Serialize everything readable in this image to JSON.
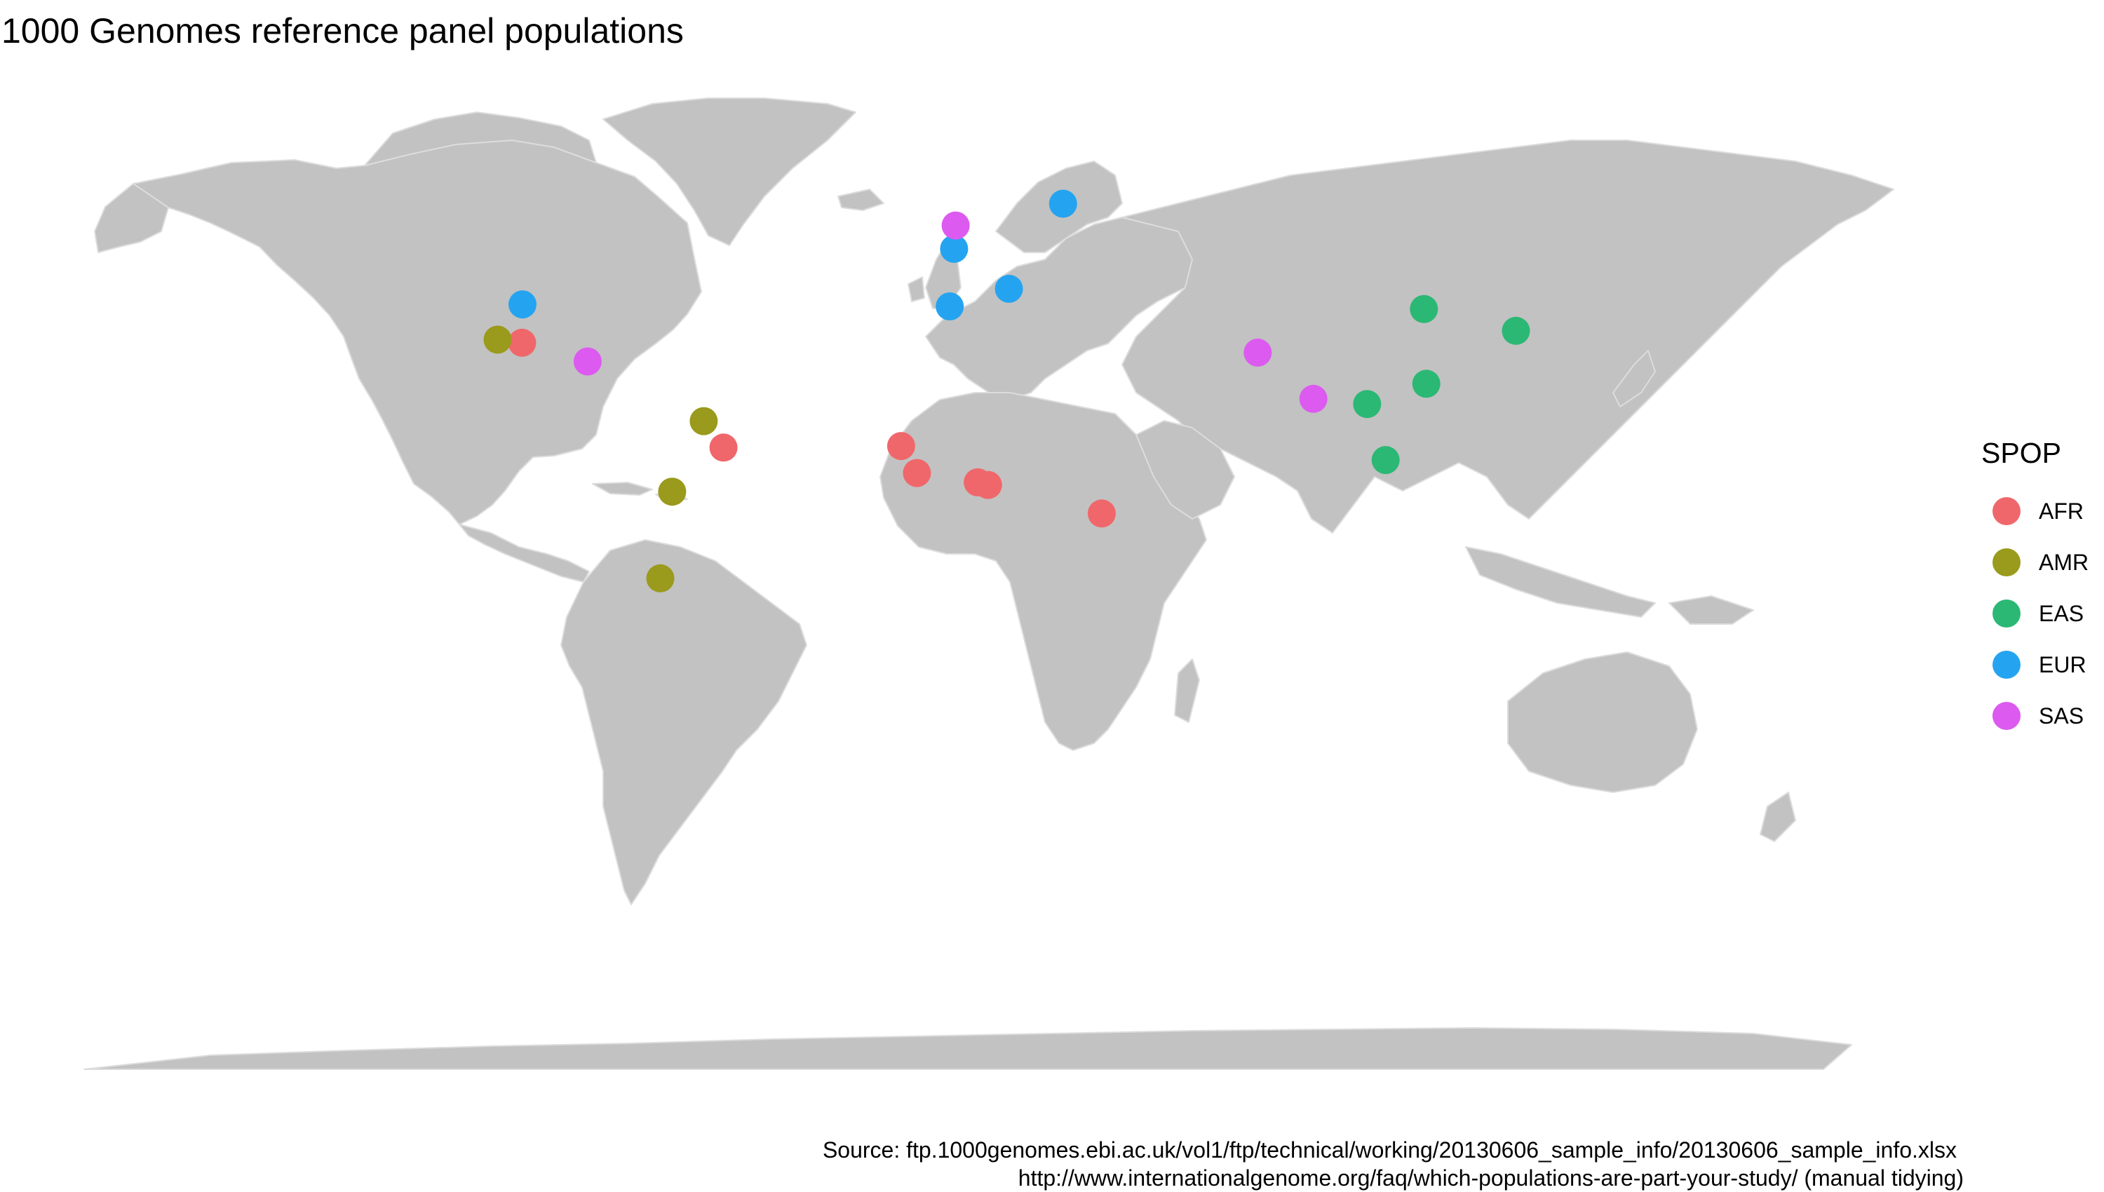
{
  "title": "1000 Genomes reference panel populations",
  "colors": {
    "land": "#c2c2c2",
    "border": "#dcdcdc",
    "AFR": "#f0676b",
    "AMR": "#9a9a1c",
    "EAS": "#2bb874",
    "EUR": "#24a4f0",
    "SAS": "#dc5af0"
  },
  "legend": {
    "title": "SPOP",
    "items": [
      {
        "label": "AFR",
        "color": "#f0676b"
      },
      {
        "label": "AMR",
        "color": "#9a9a1c"
      },
      {
        "label": "EAS",
        "color": "#2bb874"
      },
      {
        "label": "EUR",
        "color": "#24a4f0"
      },
      {
        "label": "SAS",
        "color": "#dc5af0"
      }
    ]
  },
  "caption": {
    "line1": "Source: ftp.1000genomes.ebi.ac.uk/vol1/ftp/technical/working/20130606_sample_info/20130606_sample_info.xlsx",
    "line2": "http://www.internationalgenome.org/faq/which-populations-are-part-your-study/ (manual tidying)"
  },
  "points": [
    {
      "spop": "AFR",
      "lon": -112,
      "lat": 33.4
    },
    {
      "spop": "AFR",
      "lon": -61,
      "lat": 13.2
    },
    {
      "spop": "AFR",
      "lon": -16,
      "lat": 13.5
    },
    {
      "spop": "AFR",
      "lon": -12,
      "lat": 8.3
    },
    {
      "spop": "AFR",
      "lon": 3.4,
      "lat": 6.5
    },
    {
      "spop": "AFR",
      "lon": 6.0,
      "lat": 6.0
    },
    {
      "spop": "AFR",
      "lon": 34.8,
      "lat": 0.5
    },
    {
      "spop": "AMR",
      "lon": -118.2,
      "lat": 34
    },
    {
      "spop": "AMR",
      "lon": -66,
      "lat": 18.3
    },
    {
      "spop": "AMR",
      "lon": -74,
      "lat": 4.7
    },
    {
      "spop": "AMR",
      "lon": -77,
      "lat": -12
    },
    {
      "spop": "EAS",
      "lon": 116.4,
      "lat": 39.9
    },
    {
      "spop": "EAS",
      "lon": 139.7,
      "lat": 35.7
    },
    {
      "spop": "EAS",
      "lon": 117,
      "lat": 25.5
    },
    {
      "spop": "EAS",
      "lon": 102,
      "lat": 21.6
    },
    {
      "spop": "EAS",
      "lon": 106.7,
      "lat": 10.8
    },
    {
      "spop": "EUR",
      "lon": -111.9,
      "lat": 40.8
    },
    {
      "spop": "EUR",
      "lon": -2.6,
      "lat": 51.5
    },
    {
      "spop": "EUR",
      "lon": -3.7,
      "lat": 40.4
    },
    {
      "spop": "EUR",
      "lon": 11.3,
      "lat": 43.8
    },
    {
      "spop": "EUR",
      "lon": 25,
      "lat": 60.2
    },
    {
      "spop": "SAS",
      "lon": -95.4,
      "lat": 29.8
    },
    {
      "spop": "SAS",
      "lon": -2.2,
      "lat": 56
    },
    {
      "spop": "SAS",
      "lon": 74.3,
      "lat": 31.5
    },
    {
      "spop": "SAS",
      "lon": 88.4,
      "lat": 22.6
    }
  ]
}
